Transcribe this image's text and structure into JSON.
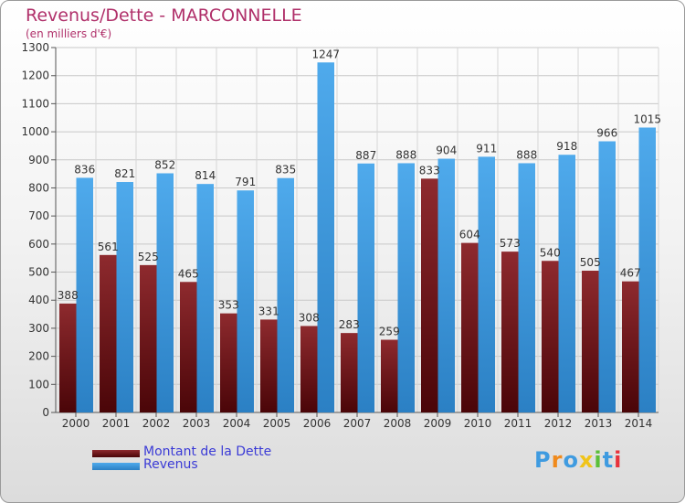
{
  "title": "Revenus/Dette - MARCONNELLE",
  "subtitle": "(en milliers d'€)",
  "logo": {
    "text": "Proxiti"
  },
  "colors": {
    "dette": "#7a1a1e",
    "revenus": "#3f9be0",
    "title": "#b0306a",
    "legend_text": "#3b3bd6"
  },
  "legend": [
    {
      "label": "Montant de la Dette",
      "color": "#7a1a1e"
    },
    {
      "label": "Revenus",
      "color": "#3f9be0"
    }
  ],
  "chart_data": {
    "type": "bar",
    "title": "Revenus/Dette - MARCONNELLE",
    "subtitle": "(en milliers d'€)",
    "xlabel": "",
    "ylabel": "",
    "ylim": [
      0,
      1300
    ],
    "yticks": [
      0,
      100,
      200,
      300,
      400,
      500,
      600,
      700,
      800,
      900,
      1000,
      1100,
      1200,
      1300
    ],
    "grid": true,
    "legend_position": "bottom-left",
    "categories": [
      "2000",
      "2001",
      "2002",
      "2003",
      "2004",
      "2005",
      "2006",
      "2007",
      "2008",
      "2009",
      "2010",
      "2011",
      "2012",
      "2013",
      "2014"
    ],
    "series": [
      {
        "name": "Montant de la Dette",
        "color": "#7a1a1e",
        "values": [
          388,
          561,
          525,
          465,
          353,
          331,
          308,
          283,
          259,
          833,
          604,
          573,
          540,
          505,
          467
        ]
      },
      {
        "name": "Revenus",
        "color": "#3f9be0",
        "values": [
          836,
          821,
          852,
          814,
          791,
          835,
          1247,
          887,
          888,
          904,
          911,
          888,
          918,
          966,
          1015
        ]
      }
    ]
  }
}
